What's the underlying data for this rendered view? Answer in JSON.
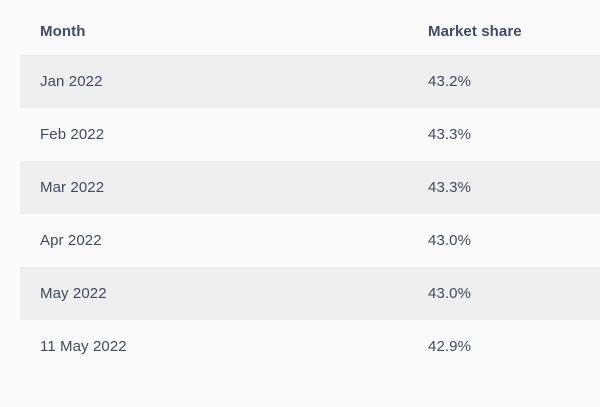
{
  "chart_data": {
    "type": "table",
    "columns": [
      "Month",
      "Market share"
    ],
    "rows": [
      [
        "Jan 2022",
        "43.2%"
      ],
      [
        "Feb 2022",
        "43.3%"
      ],
      [
        "Mar 2022",
        "43.3%"
      ],
      [
        "Apr 2022",
        "43.0%"
      ],
      [
        "May 2022",
        "43.0%"
      ],
      [
        "11 May 2022",
        "42.9%"
      ]
    ]
  },
  "table": {
    "headers": {
      "month": "Month",
      "share": "Market share"
    },
    "rows": [
      {
        "month": "Jan 2022",
        "share": "43.2%"
      },
      {
        "month": "Feb 2022",
        "share": "43.3%"
      },
      {
        "month": "Mar 2022",
        "share": "43.3%"
      },
      {
        "month": "Apr 2022",
        "share": "43.0%"
      },
      {
        "month": "May 2022",
        "share": "43.0%"
      },
      {
        "month": "11 May 2022",
        "share": "42.9%"
      }
    ]
  },
  "colors": {
    "stripe": "#efefef",
    "text": "#3d4b64",
    "background": "#fbfbfc"
  }
}
